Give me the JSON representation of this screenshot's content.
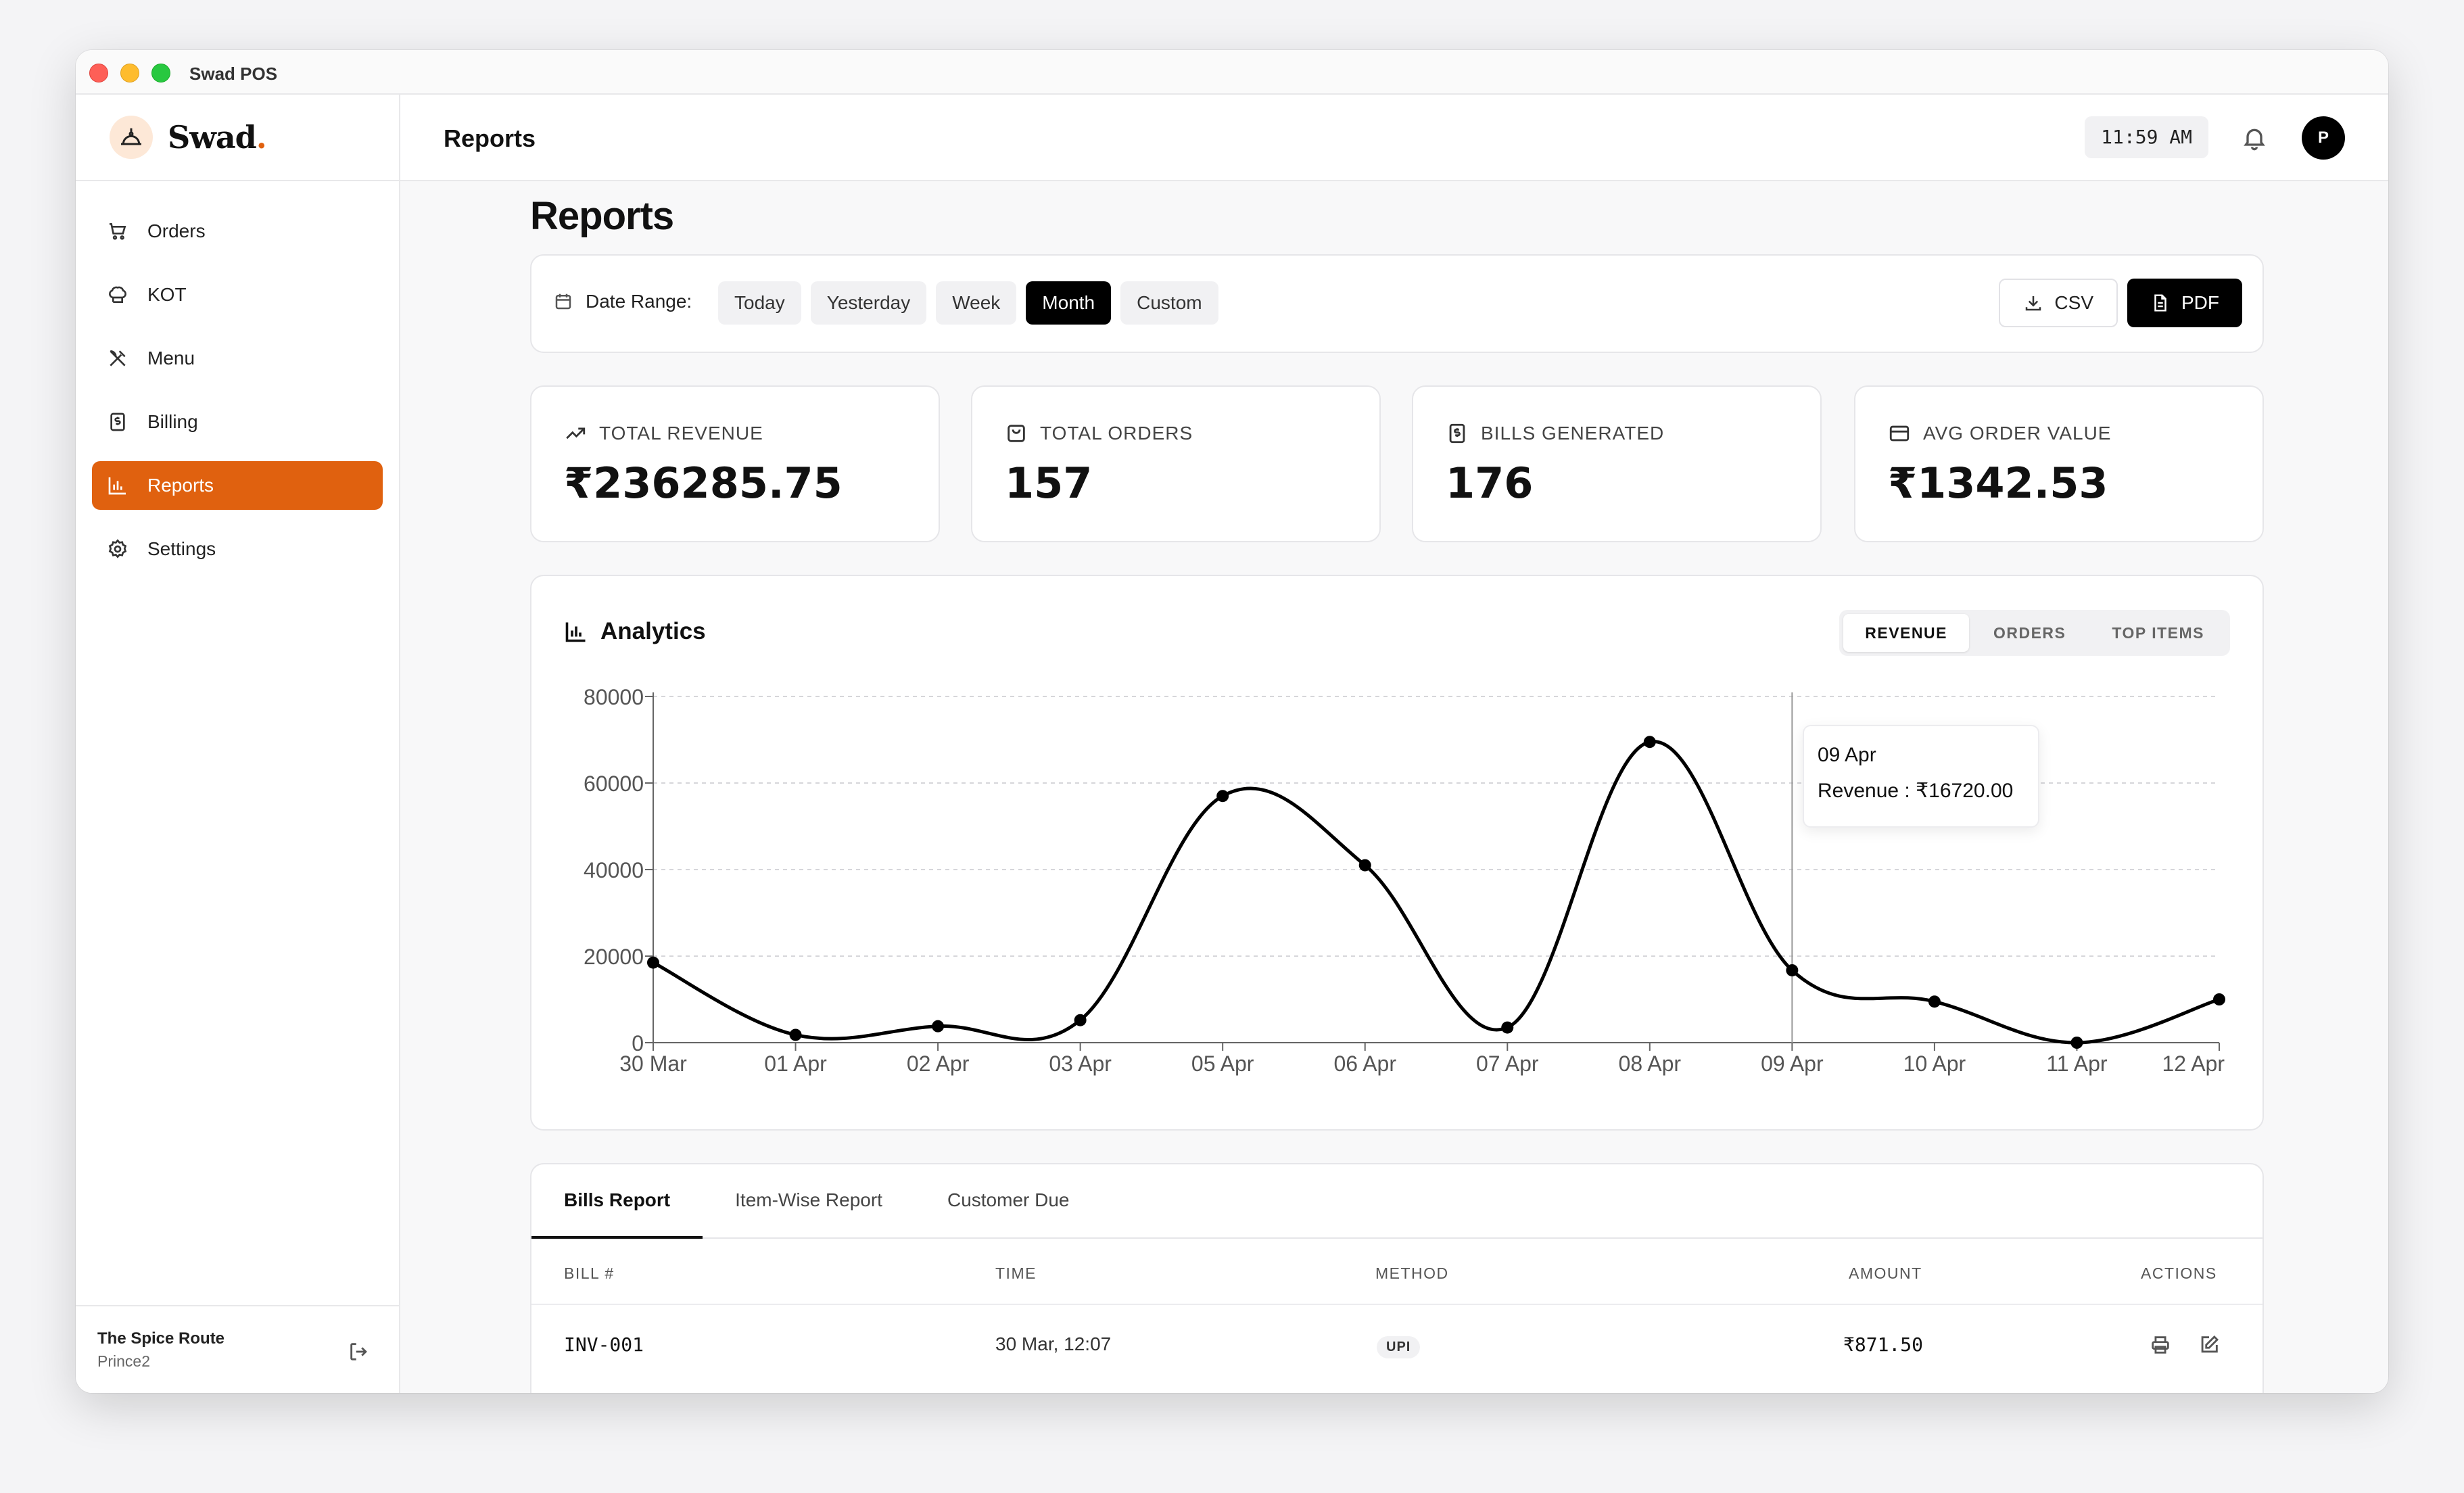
{
  "window": {
    "title": "Swad POS"
  },
  "brand": {
    "name": "Swad",
    "dot": "."
  },
  "sidebar": {
    "items": [
      {
        "label": "Orders",
        "icon": "cart-icon"
      },
      {
        "label": "KOT",
        "icon": "chef-hat-icon"
      },
      {
        "label": "Menu",
        "icon": "utensils-icon"
      },
      {
        "label": "Billing",
        "icon": "receipt-icon"
      },
      {
        "label": "Reports",
        "icon": "bar-chart-icon",
        "active": true
      },
      {
        "label": "Settings",
        "icon": "gear-icon"
      }
    ],
    "footer": {
      "restaurant": "The Spice Route",
      "user": "Prince2"
    }
  },
  "topbar": {
    "title": "Reports",
    "time": "11:59 AM",
    "avatar": "P"
  },
  "page": {
    "title": "Reports"
  },
  "filters": {
    "date_range_label": "Date Range:",
    "ranges": [
      "Today",
      "Yesterday",
      "Week",
      "Month",
      "Custom"
    ],
    "active_range": "Month",
    "csv_label": "CSV",
    "pdf_label": "PDF"
  },
  "stats": [
    {
      "label": "TOTAL REVENUE",
      "value": "₹236285.75",
      "icon": "trending-up-icon"
    },
    {
      "label": "TOTAL ORDERS",
      "value": "157",
      "icon": "shopping-bag-icon"
    },
    {
      "label": "BILLS GENERATED",
      "value": "176",
      "icon": "bill-icon"
    },
    {
      "label": "AVG ORDER VALUE",
      "value": "₹1342.53",
      "icon": "credit-card-icon"
    }
  ],
  "analytics": {
    "title": "Analytics",
    "tabs": [
      "REVENUE",
      "ORDERS",
      "TOP ITEMS"
    ],
    "active_tab": "REVENUE",
    "tooltip": {
      "date": "09 Apr",
      "text": "Revenue : ₹16720.00"
    }
  },
  "chart_data": {
    "type": "line",
    "categories": [
      "30 Mar",
      "01 Apr",
      "02 Apr",
      "03 Apr",
      "05 Apr",
      "06 Apr",
      "07 Apr",
      "08 Apr",
      "09 Apr",
      "10 Apr",
      "11 Apr",
      "12 Apr"
    ],
    "series": [
      {
        "values": [
          18500,
          1800,
          3800,
          5200,
          57000,
          41000,
          3500,
          69500,
          16720,
          9500,
          0,
          10000
        ]
      }
    ],
    "ylim": [
      0,
      80000
    ],
    "yticks": [
      0,
      20000,
      40000,
      60000,
      80000
    ],
    "grid": true,
    "highlight_index": 8,
    "line_color": "#000000"
  },
  "bills": {
    "tabs": [
      "Bills Report",
      "Item-Wise Report",
      "Customer Due"
    ],
    "active_tab": "Bills Report",
    "columns": [
      "BILL #",
      "TIME",
      "METHOD",
      "AMOUNT",
      "ACTIONS"
    ],
    "rows": [
      {
        "bill": "INV-001",
        "time": "30 Mar, 12:07",
        "method": "UPI",
        "amount": "₹871.50"
      }
    ]
  },
  "colors": {
    "accent": "#e0610f",
    "dark": "#000000"
  }
}
